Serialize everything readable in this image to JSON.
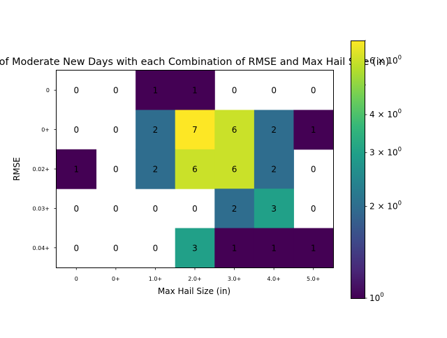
{
  "chart_data": {
    "type": "heatmap",
    "title": "of Moderate New Days with each Combination of RMSE and Max Hail Size (in)",
    "xlabel": "Max Hail Size (in)",
    "ylabel": "RMSE",
    "x_categories": [
      "0",
      "0+",
      "1.0+",
      "2.0+",
      "3.0+",
      "4.0+",
      "5.0+"
    ],
    "y_categories": [
      "0",
      "0+",
      "0.02+",
      "0.03+",
      "0.04+"
    ],
    "values": [
      [
        0,
        0,
        1,
        1,
        0,
        0,
        0
      ],
      [
        0,
        0,
        2,
        7,
        6,
        2,
        1
      ],
      [
        1,
        0,
        2,
        6,
        6,
        2,
        0
      ],
      [
        0,
        0,
        0,
        0,
        2,
        3,
        0
      ],
      [
        0,
        0,
        0,
        3,
        1,
        1,
        1
      ]
    ],
    "zero_cells_colored": false,
    "colorscale": "viridis",
    "color_scale_type": "log",
    "colorbar_range": [
      1,
      7
    ],
    "colorbar_ticks": [
      {
        "value": 1,
        "label_base": "10",
        "label_exp": "0"
      },
      {
        "value": 2,
        "label_base": "2 × 10",
        "label_exp": "0"
      },
      {
        "value": 3,
        "label_base": "3 × 10",
        "label_exp": "0"
      },
      {
        "value": 4,
        "label_base": "4 × 10",
        "label_exp": "0"
      },
      {
        "value": 6,
        "label_base": "6 × 10",
        "label_exp": "0"
      }
    ],
    "viridis_stops": [
      "#440154",
      "#482878",
      "#3e4989",
      "#31688e",
      "#26828e",
      "#1f9e89",
      "#35b779",
      "#6ece58",
      "#b5de2b",
      "#fde725"
    ]
  }
}
